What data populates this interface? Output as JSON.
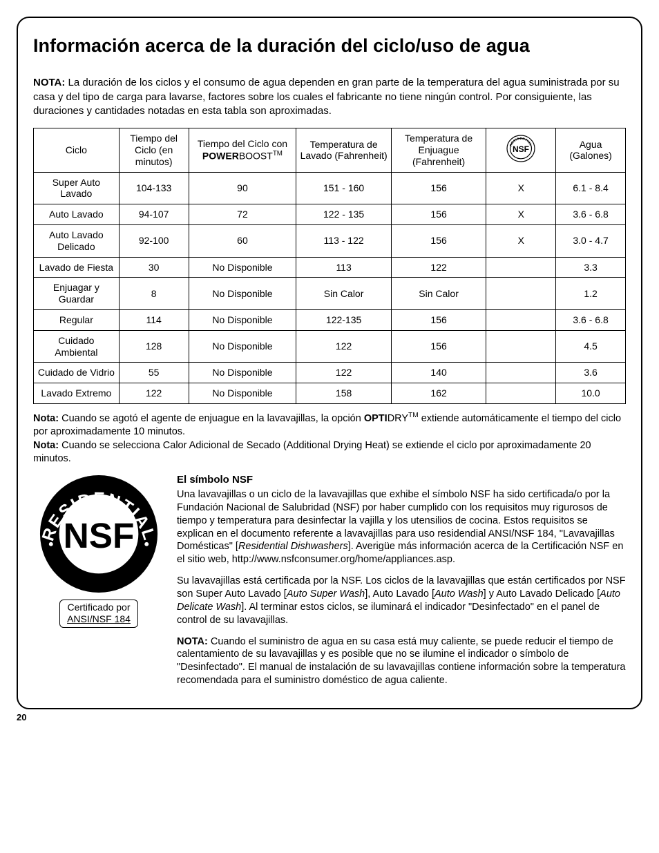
{
  "title": "Información acerca de la duración del ciclo/uso de agua",
  "intro": {
    "label": "NOTA:",
    "text": " La duración de los ciclos y el consumo de agua dependen en gran parte de la temperatura del agua suministrada por su casa y del tipo de carga para lavarse, factores sobre los cuales el fabricante no tiene ningún control. Por consiguiente, las duraciones y cantidades notadas en esta tabla son aproximadas."
  },
  "table": {
    "headers": {
      "ciclo": "Ciclo",
      "tiempo": "Tiempo del Ciclo (en minutos)",
      "power_prefix": "Tiempo del Ciclo con ",
      "power_brand1": "POWER",
      "power_brand2": "BOOST",
      "power_tm": "TM",
      "lavado": "Temperatura de Lavado (Fahrenheit)",
      "enjuague": "Temperatura de Enjuague (Fahrenheit)",
      "agua": "Agua (Galones)"
    },
    "rows": [
      {
        "ciclo": "Super Auto Lavado",
        "tiempo": "104-133",
        "power": "90",
        "lavado": "151 - 160",
        "enjuague": "156",
        "nsf": "X",
        "agua": "6.1 - 8.4"
      },
      {
        "ciclo": "Auto Lavado",
        "tiempo": "94-107",
        "power": "72",
        "lavado": "122 - 135",
        "enjuague": "156",
        "nsf": "X",
        "agua": "3.6 - 6.8"
      },
      {
        "ciclo": "Auto Lavado Delicado",
        "tiempo": "92-100",
        "power": "60",
        "lavado": "113 - 122",
        "enjuague": "156",
        "nsf": "X",
        "agua": "3.0 - 4.7"
      },
      {
        "ciclo": "Lavado de Fiesta",
        "tiempo": "30",
        "power": "No Disponible",
        "lavado": "113",
        "enjuague": "122",
        "nsf": "",
        "agua": "3.3"
      },
      {
        "ciclo": "Enjuagar y Guardar",
        "tiempo": "8",
        "power": "No Disponible",
        "lavado": "Sin Calor",
        "enjuague": "Sin Calor",
        "nsf": "",
        "agua": "1.2"
      },
      {
        "ciclo": "Regular",
        "tiempo": "114",
        "power": "No Disponible",
        "lavado": "122-135",
        "enjuague": "156",
        "nsf": "",
        "agua": "3.6 - 6.8"
      },
      {
        "ciclo": "Cuidado Ambiental",
        "tiempo": "128",
        "power": "No Disponible",
        "lavado": "122",
        "enjuague": "156",
        "nsf": "",
        "agua": "4.5"
      },
      {
        "ciclo": "Cuidado de Vidrio",
        "tiempo": "55",
        "power": "No Disponible",
        "lavado": "122",
        "enjuague": "140",
        "nsf": "",
        "agua": "3.6"
      },
      {
        "ciclo": "Lavado Extremo",
        "tiempo": "122",
        "power": "No Disponible",
        "lavado": "158",
        "enjuague": "162",
        "nsf": "",
        "agua": "10.0"
      }
    ]
  },
  "note1": {
    "label": "Nota:",
    "pre": " Cuando se agotó el agente de enjuague en la lavavajillas, la opción ",
    "brand1": "OPTI",
    "brand2": "DRY",
    "tm": "TM",
    "post": " extiende automáticamente el tiempo del ciclo por aproximadamente 10 minutos."
  },
  "note2": {
    "label": "Nota:",
    "text": " Cuando se selecciona Calor Adicional de Secado (Additional Drying Heat) se extiende el ciclo por aproximadamente 20 minutos."
  },
  "nsf": {
    "big_ring": "RESIDENTIAL",
    "big_center": "NSF",
    "cert_line1": "Certificado por",
    "cert_line2": "ANSI/NSF 184",
    "heading": "El símbolo NSF",
    "p1_a": "Una lavavajillas o un ciclo de la lavavajillas que exhibe el símbolo NSF ha sido certificada/o por la Fundación Nacional de Salubridad (NSF) por haber cumplido con los requisitos muy rigurosos de tiempo y temperatura para desinfectar la vajilla y los utensilios de cocina.  Estos requisitos se explican en el documento referente a lavavajillas para uso residendial ANSI/NSF 184, \"Lavavajillas Domésticas\" [",
    "p1_em": "Residential Dishwashers",
    "p1_b": "]. Averigüe más información acerca de la Certificación NSF en el sitio web, http://www.nsfconsumer.org/home/appliances.asp.",
    "p2_a": "Su lavavajillas está certificada por la NSF. Los ciclos de la lavavajillas que están certificados por NSF son Super Auto Lavado [",
    "p2_em1": "Auto Super Wash",
    "p2_b": "], Auto Lavado [",
    "p2_em2": "Auto Wash",
    "p2_c": "] y Auto Lavado Delicado [",
    "p2_em3": "Auto Delicate Wash",
    "p2_d": "]. Al terminar estos ciclos, se iluminará el indicador \"Desinfectado\" en el panel de control de su lavavajillas.",
    "p3_label": "NOTA:",
    "p3_text": " Cuando el suministro de agua en su casa está muy caliente, se puede reducir el tiempo de calentamiento de su lavavajillas y es posible que no se ilumine el indicador o símbolo de \"Desinfectado\". El manual de instalación de su lavavajillas contiene información sobre la temperatura recomendada para el suministro doméstico de agua caliente."
  },
  "page_number": "20"
}
